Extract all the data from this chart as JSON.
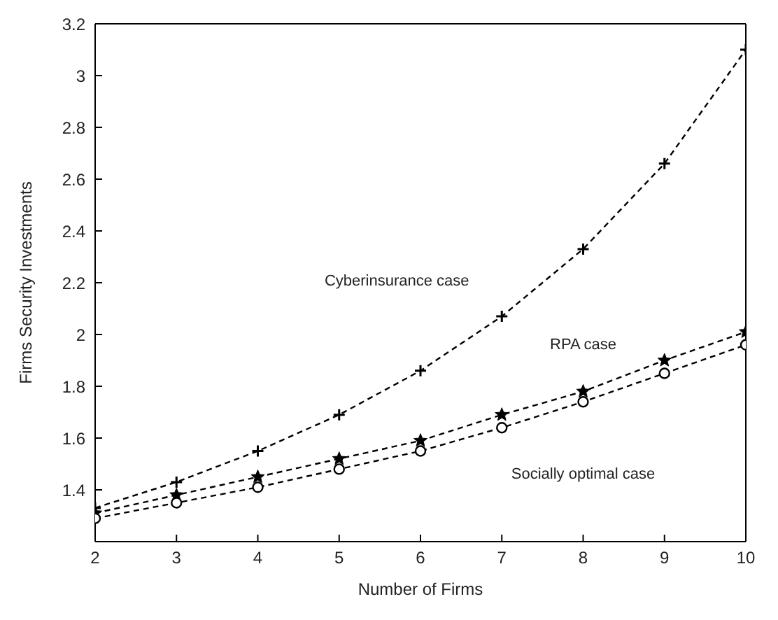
{
  "chart_data": {
    "type": "line",
    "xlabel": "Number of Firms",
    "ylabel": "Firms Security Investments",
    "x": [
      2,
      3,
      4,
      5,
      6,
      7,
      8,
      9,
      10
    ],
    "series": [
      {
        "name": "Cyberinsurance case",
        "color": "#000000",
        "marker": "cross",
        "values": [
          1.33,
          1.43,
          1.55,
          1.69,
          1.86,
          2.07,
          2.33,
          2.66,
          3.1
        ]
      },
      {
        "name": "RPA case",
        "color": "#000000",
        "marker": "star",
        "values": [
          1.31,
          1.38,
          1.45,
          1.52,
          1.59,
          1.69,
          1.78,
          1.9,
          2.01
        ]
      },
      {
        "name": "Socially optimal case",
        "color": "#000000",
        "marker": "circle",
        "values": [
          1.29,
          1.35,
          1.41,
          1.48,
          1.55,
          1.64,
          1.74,
          1.85,
          1.96
        ]
      }
    ],
    "xlim": [
      2,
      10
    ],
    "xticks": [
      2,
      3,
      4,
      5,
      6,
      7,
      8,
      9,
      10
    ],
    "ylim": [
      1.2,
      3.2
    ],
    "yticks": [
      1.4,
      1.6,
      1.8,
      2,
      2.2,
      2.4,
      2.6,
      2.8,
      3,
      3.2
    ],
    "grid": false,
    "line_style": "dashed"
  }
}
